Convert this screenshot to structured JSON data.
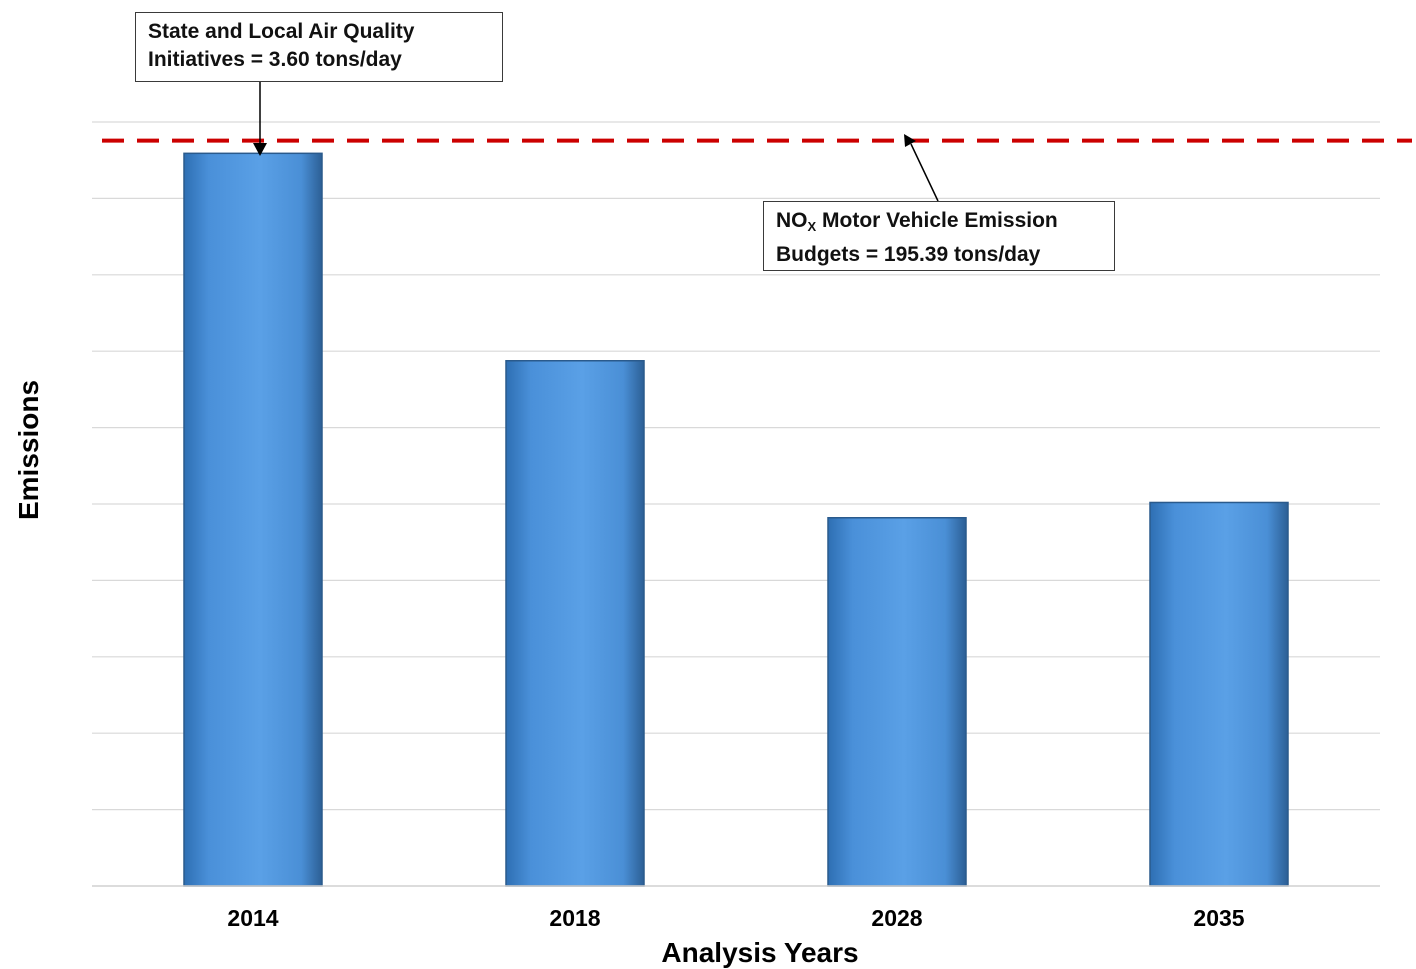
{
  "chart_data": {
    "type": "bar",
    "categories": [
      "2014",
      "2018",
      "2028",
      "2035"
    ],
    "values": [
      191.8,
      137.5,
      96.4,
      100.4
    ],
    "ylabel": "Emissions",
    "xlabel": "Analysis Years",
    "ylim": [
      0,
      225
    ],
    "grid": true,
    "bar_color": "#4a90d9",
    "reference_lines": [
      {
        "value": 195.39,
        "style": "dashed",
        "color": "#cc0000"
      }
    ],
    "annotations": {
      "initiatives": {
        "line1": "State and Local Air Quality",
        "line2": "Initiatives = 3.60 tons/day",
        "value": 3.6
      },
      "budget": {
        "line1_main": "NO",
        "line1_sub": "X",
        "line1_rest": " Motor Vehicle Emission",
        "line2": "Budgets = 195.39 tons/day",
        "value": 195.39
      }
    }
  }
}
